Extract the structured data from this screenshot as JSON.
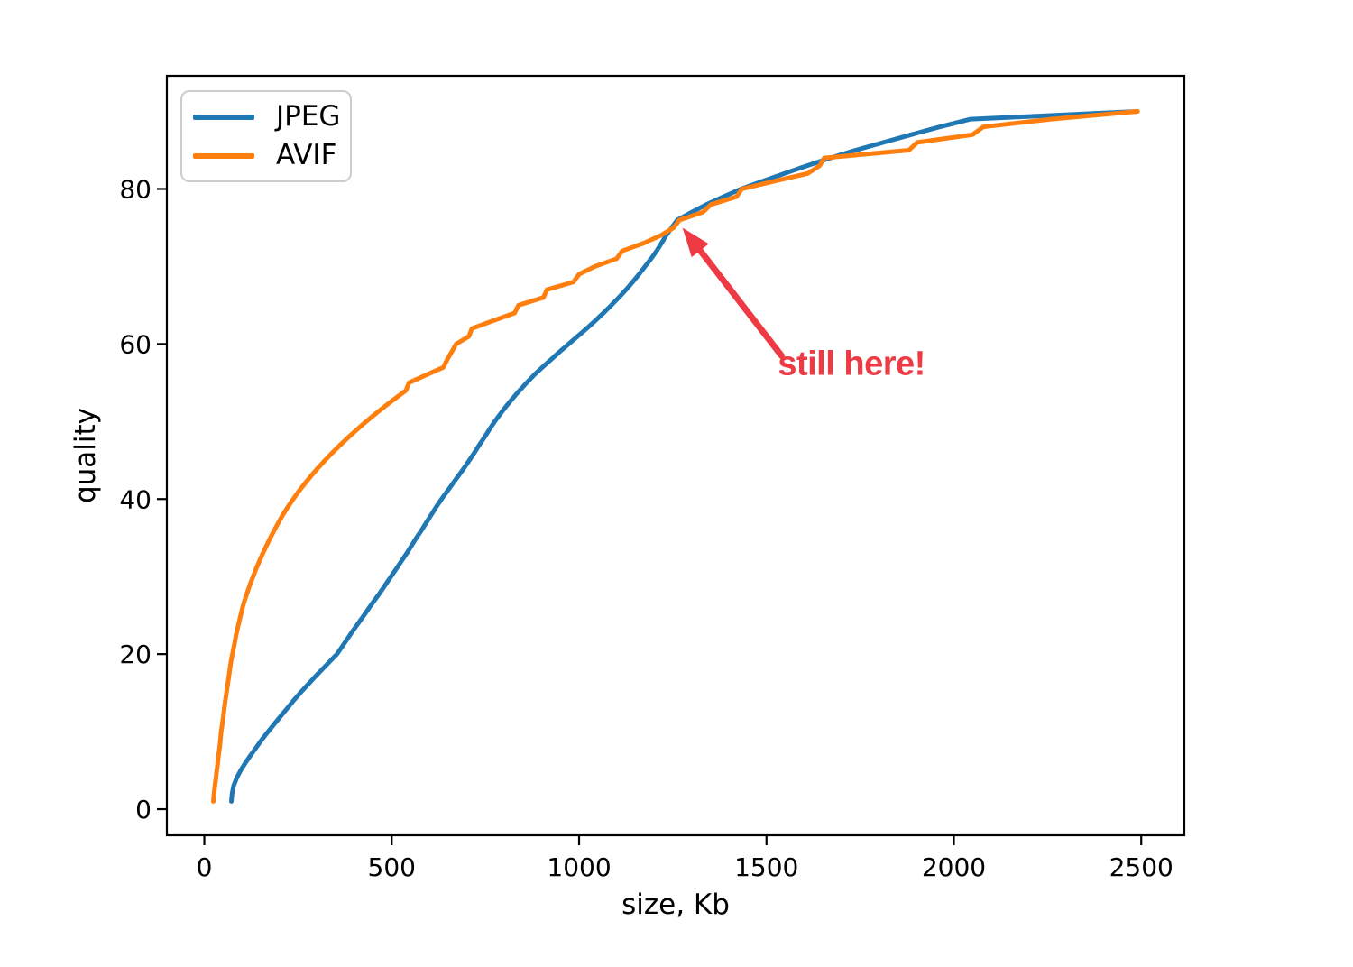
{
  "figure": {
    "background": "#ffffff",
    "axis_color": "#000000"
  },
  "chart_data": {
    "type": "line",
    "title": "",
    "xlabel": "size, Kb",
    "ylabel": "quality",
    "grid": false,
    "xlim": [
      -100,
      2615
    ],
    "ylim": [
      -3.37,
      94.6
    ],
    "x_ticks": {
      "values": [
        0,
        500,
        1000,
        1500,
        2000,
        2500
      ],
      "labels": [
        "0",
        "500",
        "1000",
        "1500",
        "2000",
        "2500"
      ]
    },
    "y_ticks": {
      "values": [
        0,
        20,
        40,
        60,
        80
      ],
      "labels": [
        "0",
        "20",
        "40",
        "60",
        "80"
      ]
    },
    "legend": {
      "position": "upper left",
      "entries": [
        "JPEG",
        "AVIF"
      ]
    },
    "series": [
      {
        "name": "JPEG",
        "color": "#1f77b4",
        "quality_min": 1,
        "sizes_kb": [
          72,
          74,
          78,
          86,
          97,
          110,
          124,
          139,
          154,
          170,
          187,
          204,
          221,
          238,
          256,
          275,
          294,
          314,
          334,
          354,
          368,
          382,
          396,
          411,
          426,
          440,
          455,
          470,
          484,
          498,
          512,
          526,
          540,
          553,
          566,
          580,
          593,
          606,
          619,
          633,
          648,
          663,
          678,
          693,
          707,
          721,
          734,
          748,
          761,
          775,
          790,
          806,
          823,
          841,
          860,
          880,
          902,
          925,
          948,
          972,
          996,
          1020,
          1043,
          1065,
          1086,
          1106,
          1125,
          1143,
          1160,
          1176,
          1192,
          1207,
          1220,
          1232,
          1247,
          1262,
          1300,
          1340,
          1385,
          1432,
          1490,
          1548,
          1608,
          1670,
          1738,
          1812,
          1886,
          1962,
          2045,
          2490
        ]
      },
      {
        "name": "AVIF",
        "color": "#ff7f0e",
        "quality_min": 1,
        "sizes_kb": [
          24,
          26,
          28,
          31,
          33,
          36,
          38,
          41,
          43,
          45,
          48,
          51,
          53,
          56,
          59,
          62,
          65,
          68,
          71,
          75,
          79,
          83,
          87,
          92,
          97,
          102,
          108,
          115,
          122,
          130,
          138,
          147,
          156,
          166,
          176,
          187,
          198,
          210,
          223,
          237,
          252,
          268,
          285,
          303,
          322,
          342,
          363,
          385,
          408,
          432,
          457,
          483,
          510,
          538,
          546,
          592,
          638,
          648,
          660,
          672,
          706,
          714,
          770,
          828,
          838,
          905,
          914,
          985,
          1000,
          1042,
          1100,
          1115,
          1172,
          1218,
          1252,
          1268,
          1330,
          1352,
          1420,
          1434,
          1520,
          1610,
          1642,
          1654,
          1880,
          1902,
          2050,
          2078,
          2260,
          2490
        ]
      }
    ],
    "annotation": {
      "text": "still here!",
      "color": "#ee3a44",
      "arrow_tip_xy": [
        1276,
        75
      ],
      "arrow_tail_xy": [
        1540,
        58.5
      ],
      "text_center_xy": [
        1727,
        57.4
      ]
    }
  }
}
